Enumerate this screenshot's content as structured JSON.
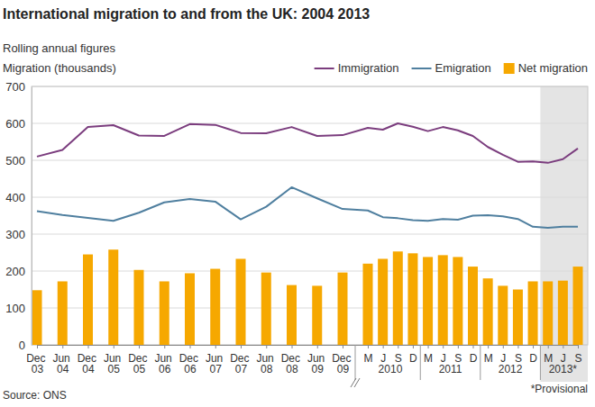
{
  "chart_data": {
    "type": "bar",
    "title": "International migration to and from the UK: 2004 2013",
    "subtitle": "Rolling annual figures",
    "y_label": "Migration (thousands)",
    "source": "Source: ONS",
    "provisional": {
      "label": "*Provisional",
      "first": 25
    },
    "categories": [
      "Dec 03",
      "Jun 04",
      "Dec 04",
      "Jun 05",
      "Dec 05",
      "Jun 06",
      "Dec 06",
      "Jun 07",
      "Dec 07",
      "Jun 08",
      "Dec 08",
      "Jun 09",
      "Dec 09",
      "M",
      "J",
      "S",
      "D",
      "M",
      "J",
      "S",
      "D",
      "M",
      "J",
      "S",
      "D",
      "M",
      "J",
      "S"
    ],
    "category_groups": [
      {
        "label": "2010",
        "first": 13,
        "count": 4
      },
      {
        "label": "2011",
        "first": 17,
        "count": 4
      },
      {
        "label": "2012",
        "first": 21,
        "count": 4
      },
      {
        "label": "2013*",
        "first": 25,
        "count": 3
      }
    ],
    "series": [
      {
        "name": "Immigration",
        "type": "line",
        "color": "#7b3d7e",
        "values": [
          510,
          528,
          590,
          595,
          567,
          566,
          598,
          596,
          574,
          573,
          590,
          566,
          568,
          588,
          583,
          600,
          591,
          579,
          590,
          581,
          566,
          536,
          515,
          496,
          497,
          493,
          503,
          532
        ]
      },
      {
        "name": "Emigration",
        "type": "line",
        "color": "#4f7f9f",
        "values": [
          362,
          352,
          344,
          336,
          358,
          386,
          395,
          388,
          340,
          374,
          427,
          397,
          368,
          364,
          346,
          343,
          338,
          336,
          341,
          339,
          350,
          351,
          348,
          341,
          320,
          317,
          320,
          320
        ]
      },
      {
        "name": "Net migration",
        "type": "bar",
        "color": "#f6a800",
        "values": [
          148,
          172,
          245,
          258,
          203,
          172,
          194,
          206,
          233,
          196,
          162,
          160,
          196,
          220,
          233,
          253,
          248,
          238,
          243,
          238,
          212,
          180,
          160,
          150,
          172,
          172,
          174,
          212
        ]
      }
    ],
    "ylim": [
      0,
      700
    ],
    "yticks": [
      0,
      100,
      200,
      300,
      400,
      500,
      600,
      700
    ],
    "grid": true,
    "legend": "top-right"
  }
}
